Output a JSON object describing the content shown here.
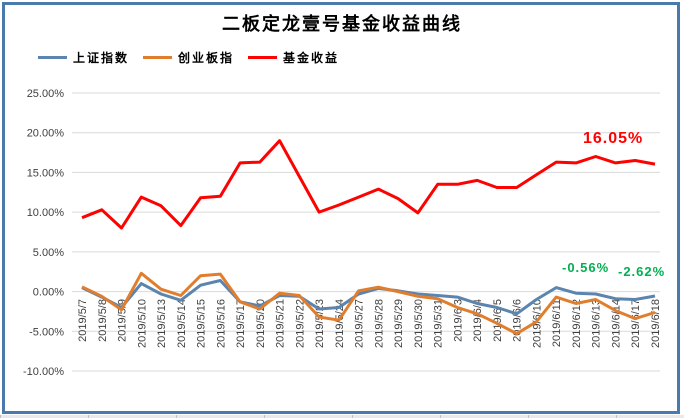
{
  "chart_data": {
    "type": "line",
    "title": "二板定龙壹号基金收益曲线",
    "categories": [
      "2019/5/7",
      "2019/5/8",
      "2019/5/9",
      "2019/5/10",
      "2019/5/13",
      "2019/5/14",
      "2019/5/15",
      "2019/5/16",
      "2019/5/17",
      "2019/5/20",
      "2019/5/21",
      "2019/5/22",
      "2019/5/23",
      "2019/5/24",
      "2019/5/27",
      "2019/5/28",
      "2019/5/29",
      "2019/5/30",
      "2019/5/31",
      "2019/6/3",
      "2019/6/4",
      "2019/6/5",
      "2019/6/6",
      "2019/6/10",
      "2019/6/11",
      "2019/6/12",
      "2019/6/13",
      "2019/6/14",
      "2019/6/17",
      "2019/6/18"
    ],
    "series": [
      {
        "name": "上证指数",
        "color": "#5b84ae",
        "values": [
          0.5,
          -0.7,
          -2.0,
          1.0,
          -0.3,
          -1.1,
          0.8,
          1.4,
          -1.3,
          -1.8,
          -0.5,
          -0.6,
          -2.2,
          -2.0,
          -0.3,
          0.4,
          0.1,
          -0.3,
          -0.5,
          -0.7,
          -1.5,
          -2.0,
          -2.8,
          -1.0,
          0.5,
          -0.2,
          -0.3,
          -0.9,
          -1.0,
          -0.56
        ]
      },
      {
        "name": "创业板指",
        "color": "#e07e2e",
        "values": [
          0.6,
          -0.6,
          -2.3,
          2.3,
          0.3,
          -0.5,
          2.0,
          2.2,
          -1.3,
          -2.2,
          -0.2,
          -0.5,
          -3.2,
          -3.6,
          0.1,
          0.55,
          0.0,
          -0.6,
          -0.9,
          -2.0,
          -2.8,
          -4.0,
          -5.3,
          -3.8,
          -0.7,
          -1.5,
          -1.0,
          -2.4,
          -3.4,
          -2.62
        ]
      },
      {
        "name": "基金收益",
        "color": "#fe0101",
        "values": [
          9.3,
          10.3,
          8.0,
          11.9,
          10.8,
          8.3,
          11.8,
          12.0,
          16.2,
          16.3,
          19.0,
          14.5,
          10.0,
          10.9,
          11.9,
          12.9,
          11.7,
          9.9,
          13.5,
          13.5,
          14.0,
          13.1,
          13.1,
          14.7,
          16.3,
          16.2,
          17.0,
          16.2,
          16.5,
          16.05
        ]
      }
    ],
    "yaxis": {
      "min": -10,
      "max": 25,
      "step": 5,
      "tick_decimals": 2,
      "tick_suffix": "%"
    },
    "grid": "horizontal",
    "legend_position": "top-left",
    "annotations": [
      {
        "text": "16.05%",
        "color": "#fe0101",
        "series": "基金收益"
      },
      {
        "text": "-0.56%",
        "color": "#00b050",
        "series": "上证指数"
      },
      {
        "text": "-2.62%",
        "color": "#00b050",
        "series": "创业板指"
      }
    ],
    "colors": {
      "frame_border": "#4a79ad",
      "gridline": "#d9d9d9",
      "tick_text": "#3f3f3f"
    }
  }
}
